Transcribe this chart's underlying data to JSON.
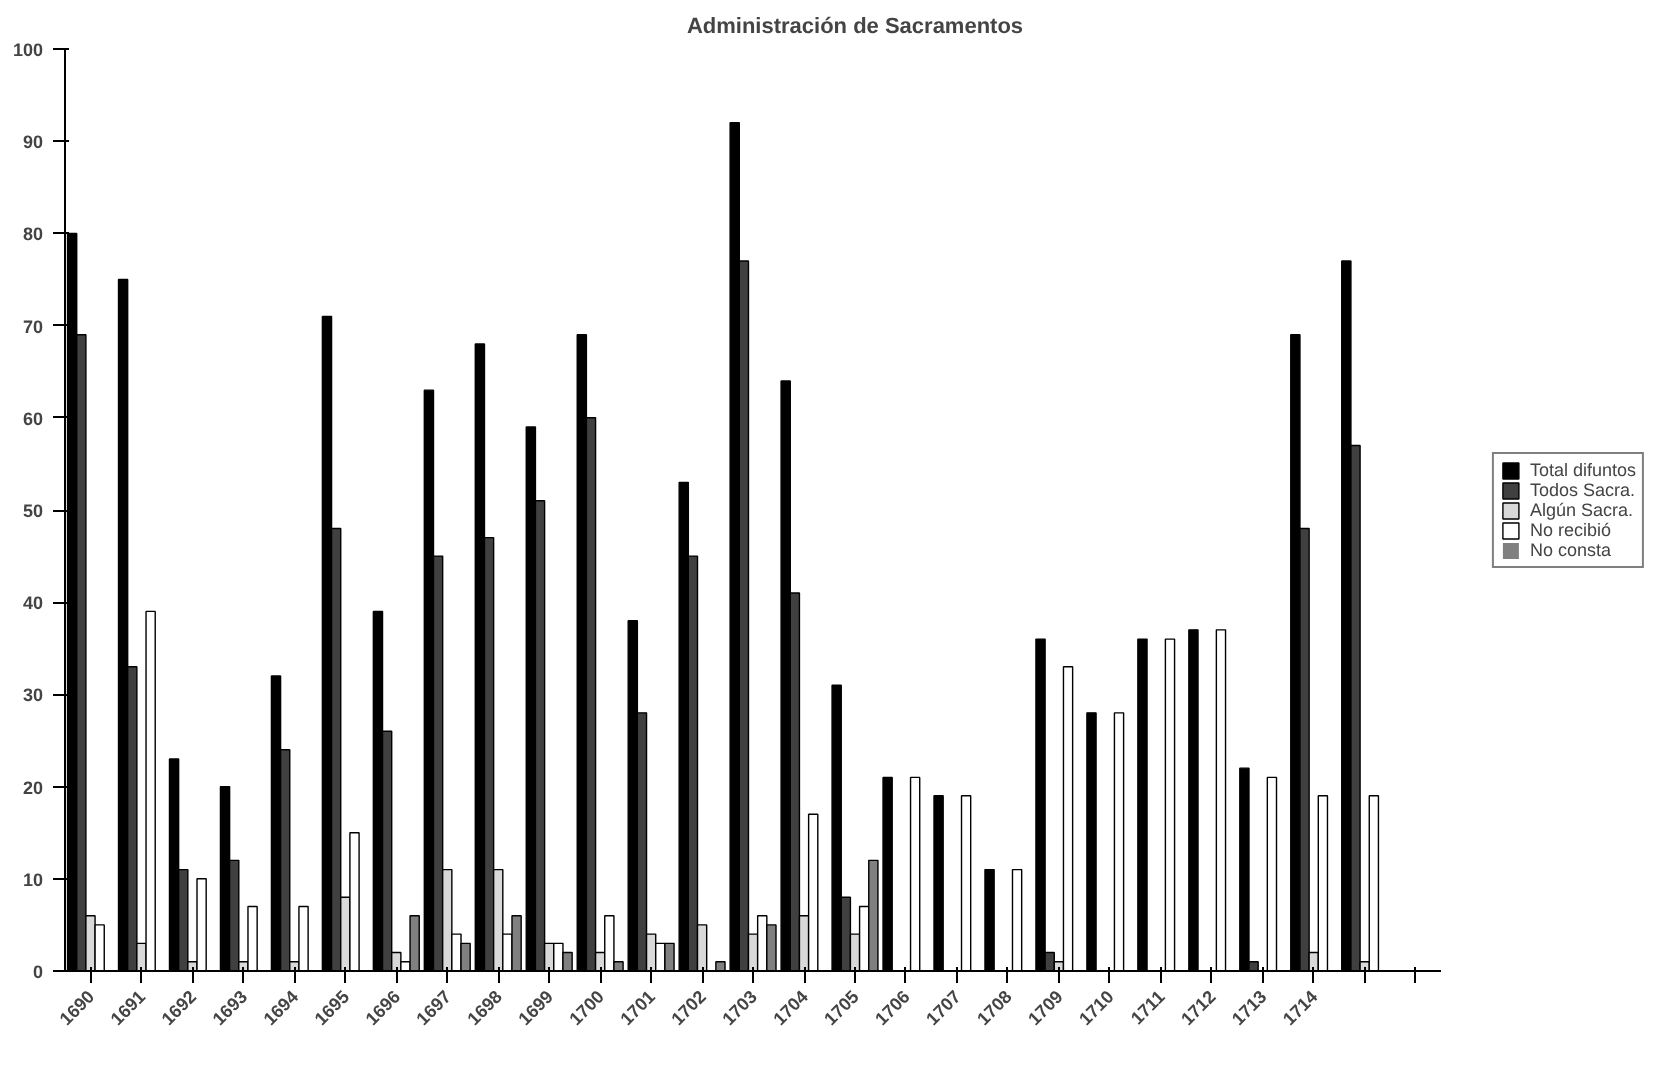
{
  "chart_data": {
    "type": "bar",
    "title": "Administración de Sacramentos",
    "categories": [
      "1690",
      "1691",
      "1692",
      "1693",
      "1694",
      "1695",
      "1696",
      "1697",
      "1698",
      "1699",
      "1700",
      "1701",
      "1702",
      "1703",
      "1704",
      "1705",
      "1706",
      "1707",
      "1708",
      "1709",
      "1710",
      "1711",
      "1712",
      "1713",
      "1714",
      null,
      null
    ],
    "series": [
      {
        "name": "Total difuntos",
        "color": "#000000",
        "values": [
          80,
          75,
          23,
          20,
          32,
          71,
          39,
          63,
          68,
          59,
          69,
          38,
          53,
          92,
          64,
          31,
          21,
          19,
          11,
          36,
          28,
          36,
          37,
          22,
          69,
          77,
          0
        ]
      },
      {
        "name": "Todos Sacra.",
        "color": "#404040",
        "values": [
          69,
          33,
          11,
          12,
          24,
          48,
          26,
          45,
          47,
          51,
          60,
          28,
          45,
          77,
          41,
          8,
          0,
          0,
          0,
          2,
          0,
          0,
          0,
          1,
          48,
          57,
          0
        ]
      },
      {
        "name": "Algún Sacra.",
        "color": "#d9d9d9",
        "values": [
          6,
          3,
          1,
          1,
          1,
          8,
          2,
          11,
          11,
          3,
          2,
          4,
          5,
          4,
          6,
          4,
          0,
          0,
          0,
          1,
          0,
          0,
          0,
          0,
          2,
          1,
          0
        ]
      },
      {
        "name": "No recibió",
        "color": "#ffffff",
        "values": [
          5,
          39,
          10,
          7,
          7,
          15,
          1,
          4,
          4,
          3,
          6,
          3,
          0,
          6,
          17,
          7,
          21,
          19,
          11,
          33,
          28,
          36,
          37,
          21,
          19,
          19,
          0
        ]
      },
      {
        "name": "No consta",
        "color": "#808080",
        "values": [
          0,
          0,
          0,
          0,
          0,
          0,
          6,
          3,
          6,
          2,
          1,
          3,
          1,
          5,
          0,
          12,
          0,
          0,
          0,
          0,
          0,
          0,
          0,
          0,
          0,
          0,
          0
        ]
      }
    ],
    "ylim": [
      0,
      100
    ],
    "yticks": [
      0,
      10,
      20,
      30,
      40,
      50,
      60,
      70,
      80,
      90,
      100
    ],
    "grid": false,
    "legend": "right"
  }
}
